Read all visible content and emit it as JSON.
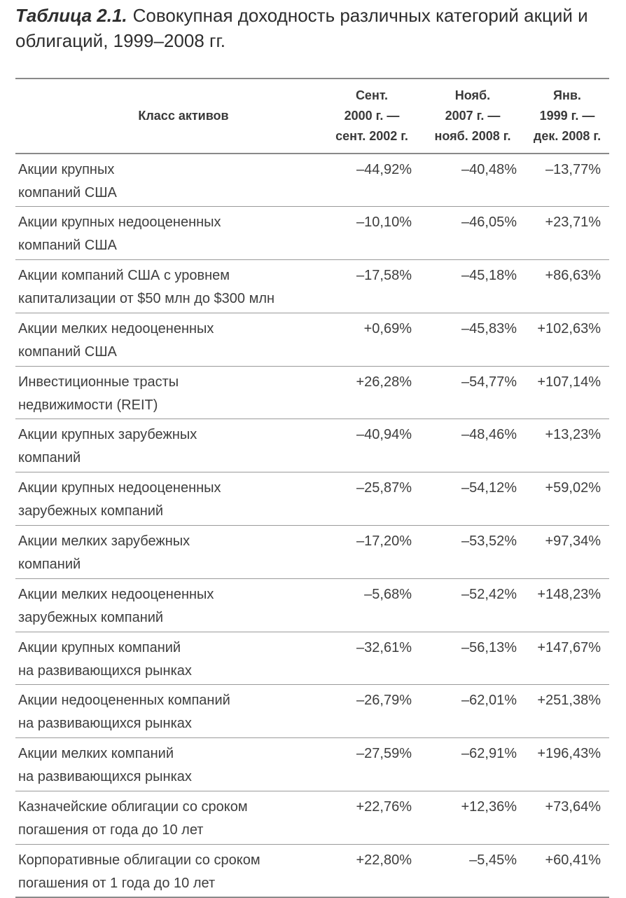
{
  "caption": {
    "label": "Таблица 2.1.",
    "text": "Совокупная доходность различных категорий акций и облигаций, 1999–2008 гг."
  },
  "table": {
    "header": {
      "asset_class": "Класс активов",
      "periods": [
        [
          "Сент.",
          "2000 г. —",
          "сент. 2002 г."
        ],
        [
          "Нояб.",
          "2007 г. —",
          "нояб. 2008 г."
        ],
        [
          "Янв.",
          "1999 г. —",
          "дек. 2008 г."
        ]
      ]
    },
    "rows": [
      {
        "asset": [
          "Акции крупных",
          "компаний США"
        ],
        "values": [
          "–44,92%",
          "–40,48%",
          "–13,77%"
        ]
      },
      {
        "asset": [
          "Акции крупных недооцененных",
          "компаний США"
        ],
        "values": [
          "–10,10%",
          "–46,05%",
          "+23,71%"
        ]
      },
      {
        "asset": [
          "Акции компаний США с уровнем",
          "капитализации от $50 млн до $300 млн"
        ],
        "values": [
          "–17,58%",
          "–45,18%",
          "+86,63%"
        ]
      },
      {
        "asset": [
          "Акции мелких недооцененных",
          "компаний США"
        ],
        "values": [
          "+0,69%",
          "–45,83%",
          "+102,63%"
        ]
      },
      {
        "asset": [
          "Инвестиционные трасты",
          "недвижимости (REIT)"
        ],
        "values": [
          "+26,28%",
          "–54,77%",
          "+107,14%"
        ]
      },
      {
        "asset": [
          "Акции крупных зарубежных",
          "компаний"
        ],
        "values": [
          "–40,94%",
          "–48,46%",
          "+13,23%"
        ]
      },
      {
        "asset": [
          "Акции крупных недооцененных",
          "зарубежных компаний"
        ],
        "values": [
          "–25,87%",
          "–54,12%",
          "+59,02%"
        ]
      },
      {
        "asset": [
          "Акции мелких зарубежных",
          "компаний"
        ],
        "values": [
          "–17,20%",
          "–53,52%",
          "+97,34%"
        ]
      },
      {
        "asset": [
          "Акции мелких недооцененных",
          "зарубежных компаний"
        ],
        "values": [
          "–5,68%",
          "–52,42%",
          "+148,23%"
        ]
      },
      {
        "asset": [
          "Акции крупных компаний",
          "на развивающихся рынках"
        ],
        "values": [
          "–32,61%",
          "–56,13%",
          "+147,67%"
        ]
      },
      {
        "asset": [
          "Акции недооцененных компаний",
          "на развивающихся рынках"
        ],
        "values": [
          "–26,79%",
          "–62,01%",
          "+251,38%"
        ]
      },
      {
        "asset": [
          "Акции мелких компаний",
          "на развивающихся рынках"
        ],
        "values": [
          "–27,59%",
          "–62,91%",
          "+196,43%"
        ]
      },
      {
        "asset": [
          "Казначейские облигации со сроком",
          "погашения от года до 10 лет"
        ],
        "values": [
          "+22,76%",
          "+12,36%",
          "+73,64%"
        ]
      },
      {
        "asset": [
          "Корпоративные облигации со сроком",
          "погашения от 1 года до 10 лет"
        ],
        "values": [
          "+22,80%",
          "–5,45%",
          "+60,41%"
        ]
      }
    ]
  }
}
